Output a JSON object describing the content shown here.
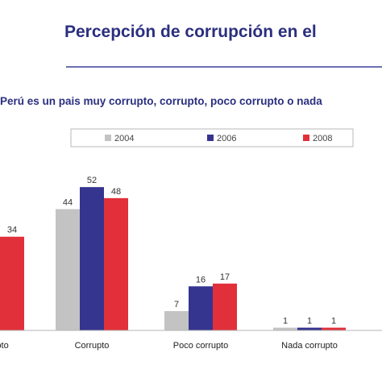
{
  "chart_data": {
    "type": "bar",
    "title": "Percepción de corrupción en el",
    "subtitle": "Perú es un pais muy corrupto, corrupto, poco corrupto o nada",
    "categories": [
      "upto",
      "Corrupto",
      "Poco corrupto",
      "Nada corrupto"
    ],
    "series": [
      {
        "name": "2004",
        "color": "#c3c3c3",
        "values": [
          null,
          44,
          7,
          1
        ]
      },
      {
        "name": "2006",
        "color": "#35348f",
        "values": [
          null,
          52,
          16,
          1
        ]
      },
      {
        "name": "2008",
        "color": "#e1303a",
        "values": [
          34,
          48,
          17,
          1
        ]
      }
    ],
    "ylim": [
      0,
      60
    ],
    "legend_position": "top",
    "grid": false
  }
}
